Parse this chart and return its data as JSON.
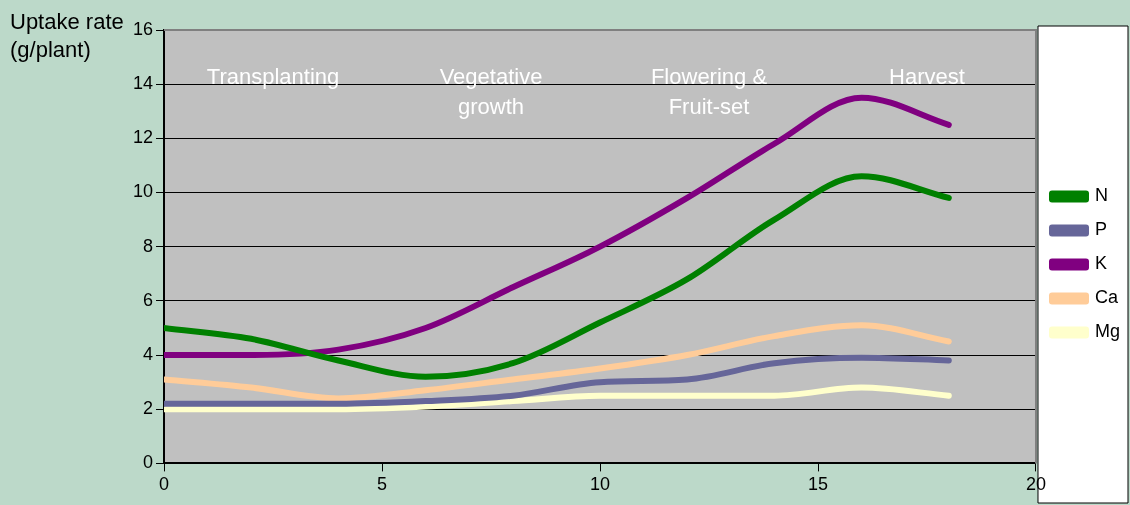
{
  "chart_data": {
    "type": "line",
    "ylabel": "Uptake rate\n(g/plant)",
    "x": [
      0,
      2,
      4,
      6,
      8,
      10,
      12,
      14,
      16,
      18
    ],
    "series": [
      {
        "name": "N",
        "color": "#008000",
        "values": [
          5,
          4.6,
          3.8,
          3.2,
          3.7,
          5.2,
          6.8,
          9.0,
          10.6,
          9.8
        ]
      },
      {
        "name": "P",
        "color": "#666699",
        "values": [
          2.2,
          2.2,
          2.2,
          2.3,
          2.5,
          3.0,
          3.1,
          3.7,
          3.9,
          3.8
        ]
      },
      {
        "name": "K",
        "color": "#800080",
        "values": [
          4,
          4,
          4.2,
          5,
          6.5,
          8,
          9.8,
          11.8,
          13.5,
          12.5
        ]
      },
      {
        "name": "Ca",
        "color": "#ffcc99",
        "values": [
          3.1,
          2.8,
          2.4,
          2.7,
          3.1,
          3.5,
          4.0,
          4.7,
          5.1,
          4.5
        ]
      },
      {
        "name": "Mg",
        "color": "#ffffcc",
        "values": [
          2,
          2,
          2,
          2.1,
          2.3,
          2.5,
          2.5,
          2.5,
          2.8,
          2.5
        ]
      }
    ],
    "xlim": [
      0,
      20
    ],
    "xticks": [
      0,
      5,
      10,
      15,
      20
    ],
    "ylim": [
      0,
      16
    ],
    "yticks": [
      0,
      2,
      4,
      6,
      8,
      10,
      12,
      14,
      16
    ],
    "grid": "y",
    "legend": "right",
    "marker": "none",
    "line_style": "solid",
    "annotations": [
      "Transplanting",
      "Vegetative\ngrowth",
      "Flowering &\nFruit-set",
      "Harvest"
    ]
  }
}
